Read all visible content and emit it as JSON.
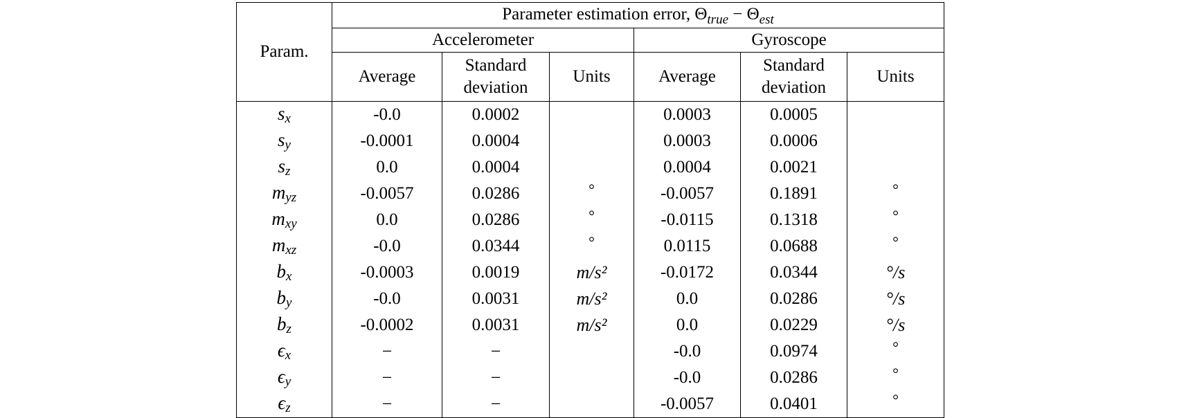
{
  "header": {
    "param": "Param.",
    "title_prefix": "Parameter estimation error, ",
    "title_true_sub": "true",
    "title_minus": " − ",
    "title_est_sub": "est",
    "theta": "Θ",
    "accelerometer": "Accelerometer",
    "gyroscope": "Gyroscope",
    "average": "Average",
    "std_line1": "Standard",
    "std_line2": "deviation",
    "units": "Units"
  },
  "rows": [
    {
      "sym": "s",
      "sub": "x",
      "acc_avg": "-0.0",
      "acc_std": "0.0002",
      "acc_units": "",
      "gyr_avg": "0.0003",
      "gyr_std": "0.0005",
      "gyr_units": ""
    },
    {
      "sym": "s",
      "sub": "y",
      "acc_avg": "-0.0001",
      "acc_std": "0.0004",
      "acc_units": "",
      "gyr_avg": "0.0003",
      "gyr_std": "0.0006",
      "gyr_units": ""
    },
    {
      "sym": "s",
      "sub": "z",
      "acc_avg": "0.0",
      "acc_std": "0.0004",
      "acc_units": "",
      "gyr_avg": "0.0004",
      "gyr_std": "0.0021",
      "gyr_units": ""
    },
    {
      "sym": "m",
      "sub": "yz",
      "acc_avg": "-0.0057",
      "acc_std": "0.0286",
      "acc_units": "°",
      "gyr_avg": "-0.0057",
      "gyr_std": "0.1891",
      "gyr_units": "°"
    },
    {
      "sym": "m",
      "sub": "xy",
      "acc_avg": "0.0",
      "acc_std": "0.0286",
      "acc_units": "°",
      "gyr_avg": "-0.0115",
      "gyr_std": "0.1318",
      "gyr_units": "°"
    },
    {
      "sym": "m",
      "sub": "xz",
      "acc_avg": "-0.0",
      "acc_std": "0.0344",
      "acc_units": "°",
      "gyr_avg": "0.0115",
      "gyr_std": "0.0688",
      "gyr_units": "°"
    },
    {
      "sym": "b",
      "sub": "x",
      "acc_avg": "-0.0003",
      "acc_std": "0.0019",
      "acc_units": "m/s²",
      "gyr_avg": "-0.0172",
      "gyr_std": "0.0344",
      "gyr_units": "°/s"
    },
    {
      "sym": "b",
      "sub": "y",
      "acc_avg": "-0.0",
      "acc_std": "0.0031",
      "acc_units": "m/s²",
      "gyr_avg": "0.0",
      "gyr_std": "0.0286",
      "gyr_units": "°/s"
    },
    {
      "sym": "b",
      "sub": "z",
      "acc_avg": "-0.0002",
      "acc_std": "0.0031",
      "acc_units": "m/s²",
      "gyr_avg": "0.0",
      "gyr_std": "0.0229",
      "gyr_units": "°/s"
    },
    {
      "sym": "ϵ",
      "sub": "x",
      "acc_avg": "−",
      "acc_std": "−",
      "acc_units": "",
      "gyr_avg": "-0.0",
      "gyr_std": "0.0974",
      "gyr_units": "°"
    },
    {
      "sym": "ϵ",
      "sub": "y",
      "acc_avg": "−",
      "acc_std": "−",
      "acc_units": "",
      "gyr_avg": "-0.0",
      "gyr_std": "0.0286",
      "gyr_units": "°"
    },
    {
      "sym": "ϵ",
      "sub": "z",
      "acc_avg": "−",
      "acc_std": "−",
      "acc_units": "",
      "gyr_avg": "-0.0057",
      "gyr_std": "0.0401",
      "gyr_units": "°"
    }
  ]
}
